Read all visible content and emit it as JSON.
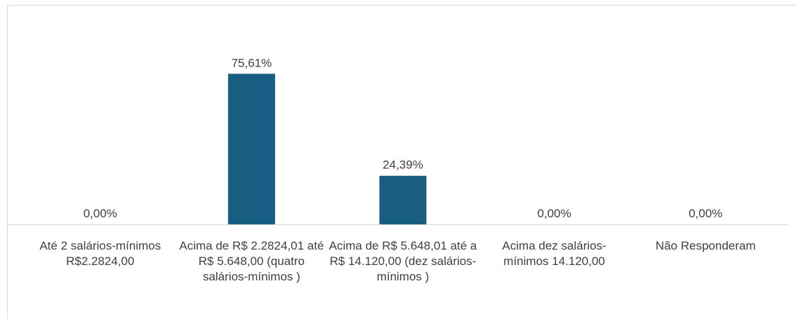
{
  "chart_data": {
    "type": "bar",
    "categories": [
      "Até 2 salários-mínimos R$2.2824,00",
      "Acima de R$ 2.2824,01 até R$ 5.648,00 (quatro salários-mínimos )",
      "Acima de R$ 5.648,01 até a R$ 14.120,00 (dez salários-mínimos )",
      "Acima dez salários-mínimos 14.120,00",
      "Não Responderam"
    ],
    "values": [
      0,
      75.61,
      24.39,
      0,
      0
    ],
    "value_labels": [
      "0,00%",
      "75,61%",
      "24,39%",
      "0,00%",
      "0,00%"
    ],
    "color": "#175e82",
    "ylim": [
      0,
      100
    ]
  }
}
